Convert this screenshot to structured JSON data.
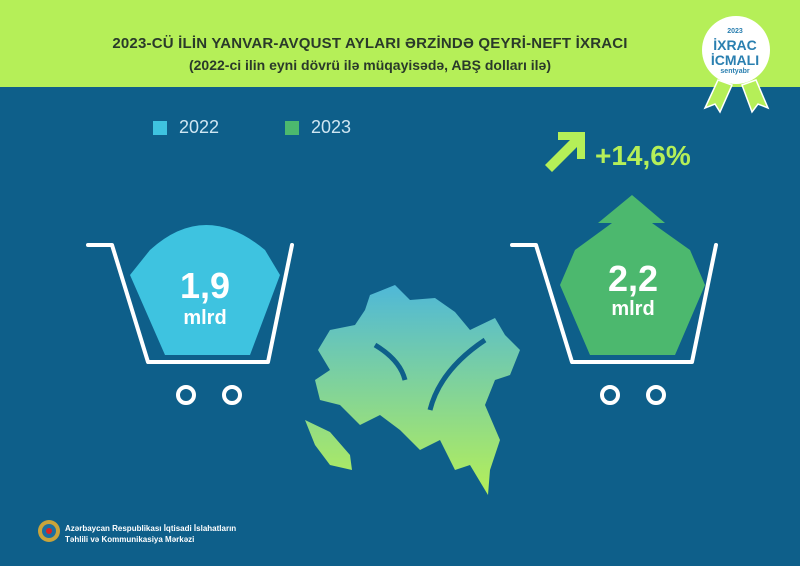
{
  "header": {
    "title": "2023-CÜ İLİN YANVAR-AVQUST AYLARI ƏRZİNDƏ QEYRİ-NEFT İXRACI",
    "subtitle": "(2022-ci ilin eyni dövrü ilə müqayisədə, ABŞ dolları ilə)"
  },
  "badge": {
    "year": "2023",
    "line1": "İXRAC",
    "line2": "İCMALI",
    "month": "sentyabr"
  },
  "legend": [
    {
      "label": "2022",
      "color": "#3ec3e0"
    },
    {
      "label": "2023",
      "color": "#4cb86e"
    }
  ],
  "values": [
    {
      "amount": "1,9",
      "unit": "mlrd"
    },
    {
      "amount": "2,2",
      "unit": "mlrd"
    }
  ],
  "change": "+14,6%",
  "footer": {
    "line1": "Azərbaycan Respublikası İqtisadi İslahatların",
    "line2": "Təhlili və Kommunikasiya Mərkəzi"
  },
  "colors": {
    "lime": "#b5ef58",
    "background": "#0e5f8a"
  }
}
